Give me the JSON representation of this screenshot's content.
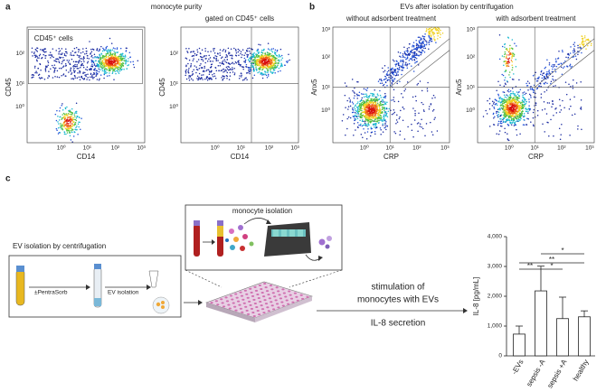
{
  "panel_a": {
    "label": "a",
    "title": "monocyte purity",
    "x_ticks": [
      "10⁰",
      "10¹",
      "10²",
      "10³"
    ],
    "y_ticks": [
      "10⁰",
      "10¹",
      "10²"
    ],
    "plots": [
      {
        "gate_label": "CD45⁺ cells",
        "x_label": "CD14",
        "y_label": "CD45"
      },
      {
        "subtitle": "gated on CD45⁺ cells",
        "x_label": "CD14",
        "y_label": "CD45"
      }
    ]
  },
  "panel_b": {
    "label": "b",
    "title": "EVs after isolation by centrifugation",
    "x_ticks": [
      "10⁰",
      "10¹",
      "10²",
      "10³"
    ],
    "y_ticks": [
      "10⁰",
      "10¹",
      "10²",
      "10³"
    ],
    "plots": [
      {
        "subtitle": "without adsorbent treatment",
        "x_label": "CRP",
        "y_label": "Anx5"
      },
      {
        "subtitle": "with adsorbent treatment",
        "x_label": "CRP",
        "y_label": "Anx5"
      }
    ]
  },
  "panel_c": {
    "label": "c",
    "ev_isolation": {
      "title": "EV isolation by centrifugation",
      "step1": "±PentraSorb",
      "step2": "EV isolation"
    },
    "monocyte_isolation": {
      "title": "monocyte isolation"
    },
    "stimulation": {
      "line1": "stimulation of",
      "line2": "monocytes with EVs",
      "readout": "IL-8 secretion"
    }
  },
  "chart_data": {
    "type": "bar",
    "y_label": "IL-8 [pg/mL]",
    "categories": [
      "-EVs",
      "sepsis -A",
      "sepsis +A",
      "healthy"
    ],
    "values": [
      730,
      2180,
      1250,
      1310
    ],
    "errors": [
      270,
      830,
      720,
      200
    ],
    "color": "#ffffff",
    "ylim": [
      0,
      4000
    ],
    "yticks": [
      0,
      {
        "value": 1000,
        "label": "1,000"
      },
      {
        "value": 2000,
        "label": "2,000"
      },
      {
        "value": 3000,
        "label": "3,000"
      },
      {
        "value": 4000,
        "label": "4,000"
      }
    ],
    "significance": [
      "*",
      "**",
      "**",
      "*"
    ]
  }
}
